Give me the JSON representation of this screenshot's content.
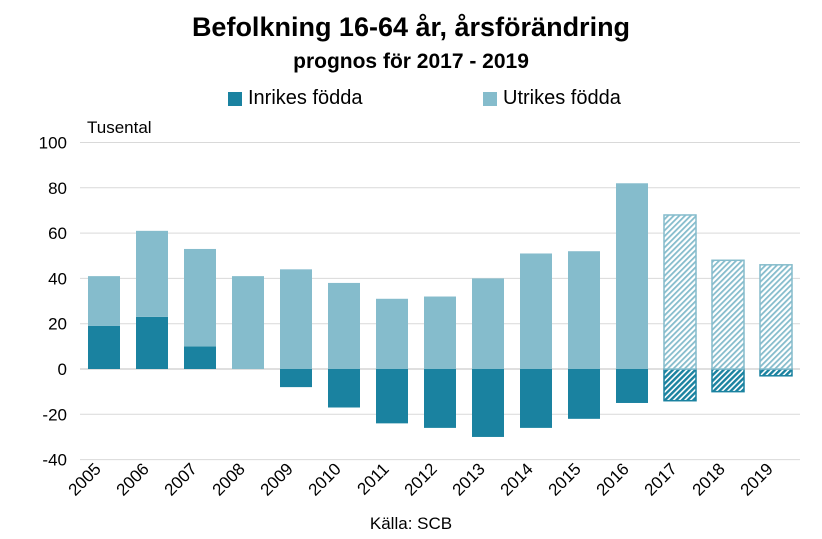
{
  "chart_data": {
    "type": "bar",
    "title": "Befolkning 16-64 år, årsförändring",
    "subtitle": "prognos för 2017 - 2019",
    "unit_label": "Tusental",
    "source": "Källa: SCB",
    "categories": [
      "2005",
      "2006",
      "2007",
      "2008",
      "2009",
      "2010",
      "2011",
      "2012",
      "2013",
      "2014",
      "2015",
      "2016",
      "2017",
      "2018",
      "2019"
    ],
    "forecast_categories": [
      "2017",
      "2018",
      "2019"
    ],
    "series": [
      {
        "name": "Inrikes födda",
        "color": "#1a82a0",
        "values": [
          19,
          23,
          10,
          0,
          -8,
          -17,
          -24,
          -26,
          -30,
          -26,
          -22,
          -15,
          -14,
          -10,
          -3
        ]
      },
      {
        "name": "Utrikes födda",
        "color": "#85bccc",
        "values": [
          22,
          38,
          43,
          41,
          44,
          38,
          31,
          32,
          40,
          51,
          52,
          82,
          68,
          48,
          46
        ]
      }
    ],
    "stacking": "positive and negative values stacked from zero",
    "ylim": [
      -40,
      100
    ],
    "yticks": [
      -40,
      -20,
      0,
      20,
      40,
      60,
      80,
      100
    ],
    "grid": "horizontal",
    "legend_position": "top"
  }
}
